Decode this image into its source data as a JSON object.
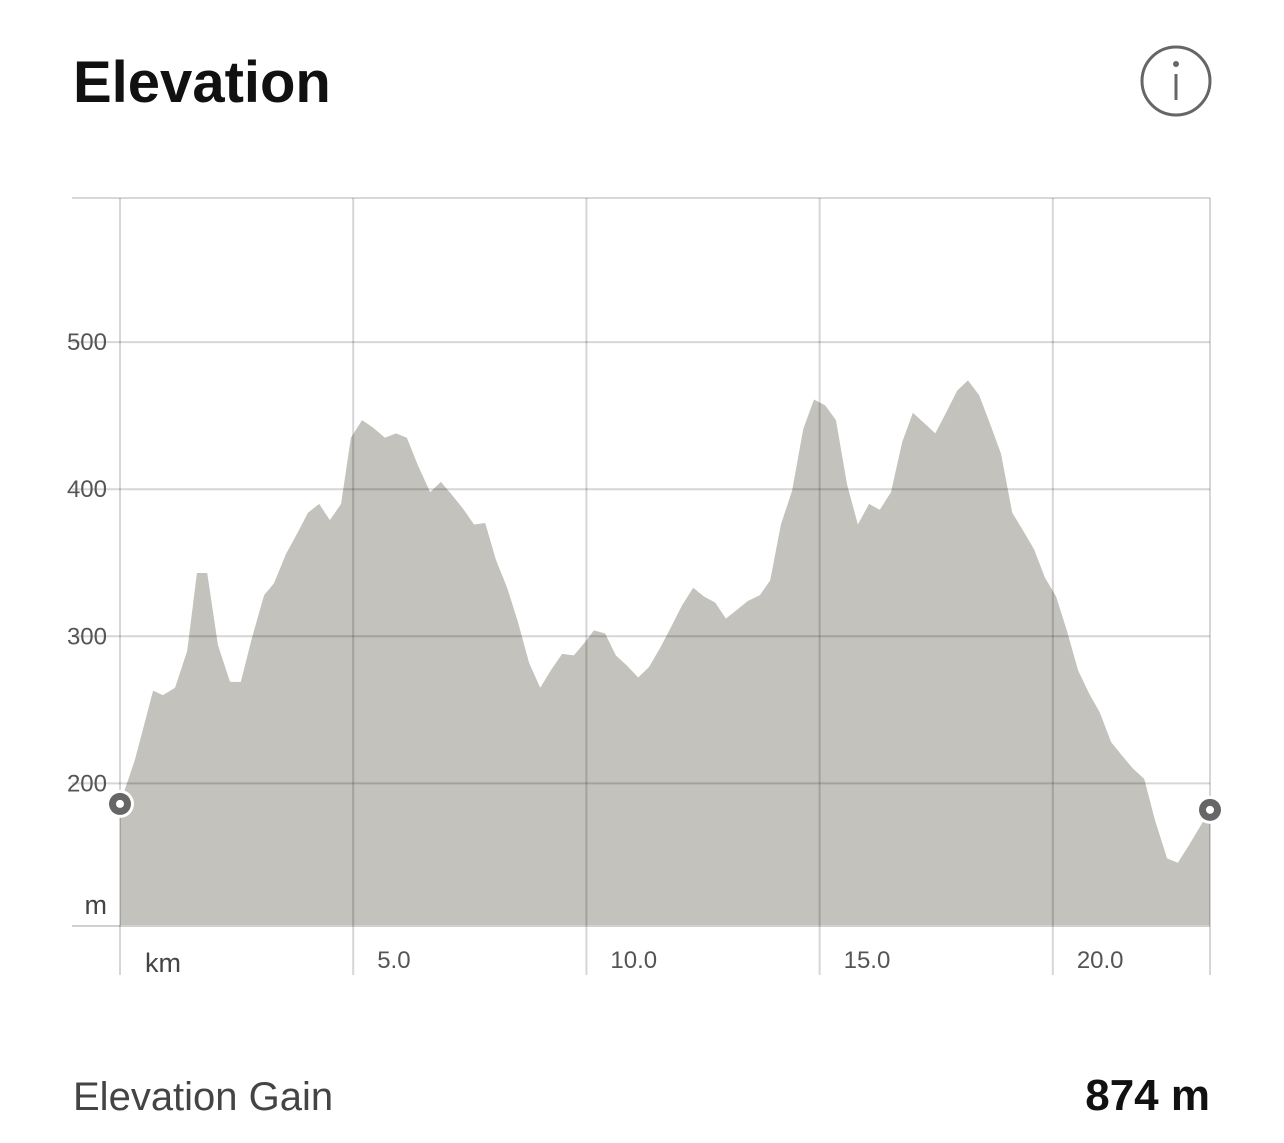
{
  "header": {
    "title": "Elevation"
  },
  "chart_data": {
    "type": "area",
    "x": [
      0,
      0.32,
      0.71,
      0.92,
      1.18,
      1.44,
      1.65,
      1.87,
      2.1,
      2.36,
      2.59,
      2.83,
      3.09,
      3.3,
      3.56,
      3.8,
      4.03,
      4.27,
      4.5,
      4.74,
      4.95,
      5.19,
      5.42,
      5.68,
      5.92,
      6.15,
      6.39,
      6.65,
      6.88,
      7.12,
      7.35,
      7.59,
      7.83,
      8.06,
      8.3,
      8.53,
      8.77,
      9.01,
      9.24,
      9.48,
      9.73,
      9.97,
      10.16,
      10.4,
      10.63,
      10.87,
      11.11,
      11.34,
      11.58,
      11.81,
      12.05,
      12.29,
      12.52,
      12.76,
      12.99,
      13.23,
      13.46,
      13.72,
      13.94,
      14.17,
      14.41,
      14.65,
      14.88,
      15.12,
      15.35,
      15.59,
      15.82,
      16.06,
      16.29,
      16.53,
      16.77,
      17.0,
      17.24,
      17.48,
      17.71,
      17.95,
      18.18,
      18.42,
      18.66,
      18.89,
      19.13,
      19.36,
      19.6,
      19.83,
      20.07,
      20.3,
      20.54,
      20.78,
      21.01,
      21.25,
      21.48,
      21.72,
      21.96,
      22.19,
      22.45,
      22.68,
      22.92,
      23.37
    ],
    "values": [
      186,
      216,
      263,
      260,
      265,
      290,
      343,
      343,
      294,
      269,
      269,
      299,
      328,
      336,
      356,
      370,
      384,
      390,
      379,
      390,
      435,
      447,
      442,
      435,
      438,
      435,
      416,
      398,
      405,
      396,
      387,
      376,
      377,
      352,
      333,
      310,
      282,
      265,
      277,
      288,
      287,
      296,
      304,
      302,
      287,
      280,
      272,
      279,
      292,
      306,
      321,
      333,
      327,
      323,
      312,
      318,
      324,
      328,
      338,
      376,
      399,
      441,
      461,
      457,
      447,
      403,
      376,
      390,
      386,
      398,
      432,
      452,
      445,
      438,
      452,
      467,
      474,
      464,
      444,
      424,
      384,
      372,
      359,
      340,
      327,
      304,
      277,
      261,
      248,
      228,
      219,
      210,
      203,
      175,
      149,
      146,
      158,
      182
    ],
    "xlabel": "km",
    "ylabel": "m",
    "xlim": [
      0,
      23.37
    ],
    "ylim": [
      103,
      598
    ],
    "xticks": [
      {
        "value": 5,
        "label": "5.0"
      },
      {
        "value": 10,
        "label": "10.0"
      },
      {
        "value": 15,
        "label": "15.0"
      },
      {
        "value": 20,
        "label": "20.0"
      }
    ],
    "yticks": [
      200,
      300,
      400,
      500
    ],
    "color": "#c3c2bc",
    "grid": true
  },
  "summary": {
    "label": "Elevation Gain",
    "value": "874 m"
  }
}
